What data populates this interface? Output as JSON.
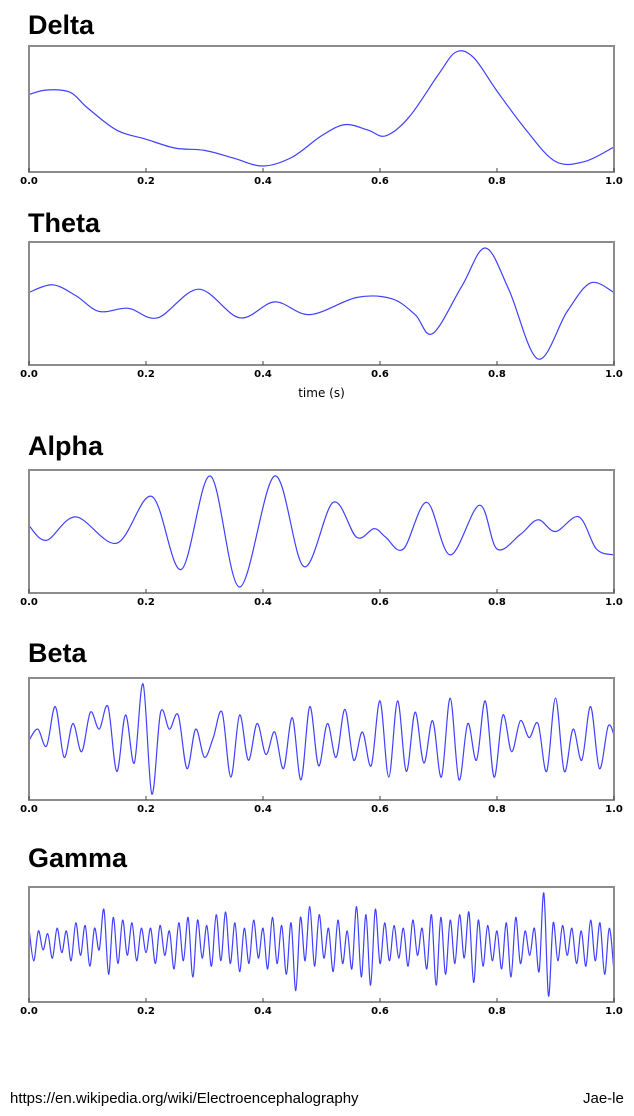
{
  "chart_data": [
    {
      "type": "line",
      "title": "Delta",
      "xlabel": "",
      "xlim": [
        0.0,
        1.0
      ],
      "xticks": [
        "0.0",
        "0.2",
        "0.4",
        "0.6",
        "0.8",
        "1.0"
      ],
      "grid": false,
      "series_color": "#4040ff",
      "series": [
        {
          "x": [
            0.0,
            0.03,
            0.07,
            0.1,
            0.15,
            0.2,
            0.25,
            0.3,
            0.35,
            0.4,
            0.45,
            0.5,
            0.54,
            0.58,
            0.61,
            0.65,
            0.7,
            0.73,
            0.76,
            0.8,
            0.85,
            0.9,
            0.95,
            1.0
          ],
          "y": [
            0.62,
            0.66,
            0.64,
            0.5,
            0.3,
            0.22,
            0.14,
            0.12,
            0.05,
            -0.02,
            0.06,
            0.25,
            0.35,
            0.3,
            0.25,
            0.42,
            0.8,
            1.0,
            0.95,
            0.65,
            0.3,
            0.02,
            0.02,
            0.15
          ]
        }
      ]
    },
    {
      "type": "line",
      "title": "Theta",
      "xlabel": "time (s)",
      "xlim": [
        0.0,
        1.0
      ],
      "xticks": [
        "0.0",
        "0.2",
        "0.4",
        "0.6",
        "0.8",
        "1.0"
      ],
      "grid": false,
      "series_color": "#4040ff",
      "series": [
        {
          "x": [
            0.0,
            0.04,
            0.08,
            0.12,
            0.17,
            0.22,
            0.29,
            0.36,
            0.42,
            0.48,
            0.56,
            0.62,
            0.66,
            0.69,
            0.74,
            0.78,
            0.82,
            0.87,
            0.92,
            0.96,
            1.0
          ],
          "y": [
            0.3,
            0.42,
            0.25,
            0.0,
            0.05,
            -0.1,
            0.35,
            -0.1,
            0.15,
            -0.05,
            0.22,
            0.2,
            -0.05,
            -0.35,
            0.4,
            1.0,
            0.35,
            -0.75,
            0.0,
            0.45,
            0.3
          ]
        }
      ]
    },
    {
      "type": "line",
      "title": "Alpha",
      "xlabel": "",
      "xlim": [
        0.0,
        1.0
      ],
      "xticks": [
        "0.0",
        "0.2",
        "0.4",
        "0.6",
        "0.8",
        "1.0"
      ],
      "grid": false,
      "series_color": "#4040ff",
      "series": [
        {
          "x": [
            0.0,
            0.03,
            0.08,
            0.15,
            0.21,
            0.26,
            0.31,
            0.36,
            0.42,
            0.47,
            0.52,
            0.56,
            0.59,
            0.61,
            0.64,
            0.68,
            0.72,
            0.77,
            0.8,
            0.84,
            0.87,
            0.9,
            0.94,
            0.97,
            1.0
          ],
          "y": [
            0.1,
            -0.15,
            0.25,
            -0.2,
            0.6,
            -0.65,
            0.95,
            -0.95,
            0.95,
            -0.6,
            0.5,
            -0.1,
            0.05,
            -0.1,
            -0.3,
            0.5,
            -0.4,
            0.45,
            -0.3,
            -0.05,
            0.2,
            0.0,
            0.25,
            -0.3,
            -0.4
          ]
        }
      ]
    },
    {
      "type": "line",
      "title": "Beta",
      "xlabel": "",
      "xlim": [
        0.0,
        1.0
      ],
      "xticks": [
        "0.0",
        "0.2",
        "0.4",
        "0.6",
        "0.8",
        "1.0"
      ],
      "grid": false,
      "series_color": "#4040ff",
      "series": [
        {
          "x": [
            0.0,
            0.015,
            0.03,
            0.045,
            0.06,
            0.075,
            0.09,
            0.105,
            0.12,
            0.135,
            0.15,
            0.165,
            0.18,
            0.195,
            0.21,
            0.225,
            0.24,
            0.255,
            0.27,
            0.285,
            0.3,
            0.315,
            0.33,
            0.345,
            0.36,
            0.375,
            0.39,
            0.405,
            0.42,
            0.435,
            0.45,
            0.465,
            0.48,
            0.495,
            0.51,
            0.525,
            0.54,
            0.555,
            0.57,
            0.585,
            0.6,
            0.615,
            0.63,
            0.645,
            0.66,
            0.675,
            0.69,
            0.705,
            0.72,
            0.735,
            0.75,
            0.765,
            0.78,
            0.795,
            0.81,
            0.825,
            0.84,
            0.855,
            0.87,
            0.885,
            0.9,
            0.915,
            0.93,
            0.945,
            0.96,
            0.975,
            0.99,
            1.0
          ],
          "y": [
            0.0,
            0.2,
            -0.1,
            0.6,
            -0.3,
            0.3,
            -0.2,
            0.5,
            0.2,
            0.6,
            -0.55,
            0.45,
            -0.4,
            1.0,
            -0.95,
            0.5,
            0.2,
            0.45,
            -0.5,
            0.2,
            -0.3,
            0.05,
            0.5,
            -0.65,
            0.45,
            -0.35,
            0.3,
            -0.25,
            0.15,
            -0.5,
            0.4,
            -0.7,
            0.6,
            -0.45,
            0.3,
            -0.3,
            0.55,
            -0.35,
            0.15,
            -0.45,
            0.7,
            -0.65,
            0.7,
            -0.55,
            0.5,
            -0.4,
            0.35,
            -0.65,
            0.75,
            -0.7,
            0.3,
            -0.35,
            0.7,
            -0.65,
            0.45,
            -0.2,
            0.35,
            0.05,
            0.3,
            -0.55,
            0.75,
            -0.55,
            0.2,
            -0.35,
            0.6,
            -0.5,
            0.25,
            0.1
          ]
        }
      ]
    },
    {
      "type": "line",
      "title": "Gamma",
      "xlabel": "",
      "xlim": [
        0.0,
        1.0
      ],
      "xticks": [
        "0.0",
        "0.2",
        "0.4",
        "0.6",
        "0.8",
        "1.0"
      ],
      "grid": false,
      "series_color": "#4040ff",
      "series": [
        {
          "x": [
            0.0,
            0.008,
            0.016,
            0.024,
            0.032,
            0.04,
            0.048,
            0.056,
            0.064,
            0.072,
            0.08,
            0.088,
            0.096,
            0.104,
            0.112,
            0.12,
            0.128,
            0.136,
            0.144,
            0.152,
            0.16,
            0.168,
            0.176,
            0.184,
            0.192,
            0.2,
            0.208,
            0.216,
            0.224,
            0.232,
            0.24,
            0.248,
            0.256,
            0.264,
            0.272,
            0.28,
            0.288,
            0.296,
            0.304,
            0.312,
            0.32,
            0.328,
            0.336,
            0.344,
            0.352,
            0.36,
            0.368,
            0.376,
            0.384,
            0.392,
            0.4,
            0.408,
            0.416,
            0.424,
            0.432,
            0.44,
            0.448,
            0.456,
            0.464,
            0.472,
            0.48,
            0.488,
            0.496,
            0.504,
            0.512,
            0.52,
            0.528,
            0.536,
            0.544,
            0.552,
            0.56,
            0.568,
            0.576,
            0.584,
            0.592,
            0.6,
            0.608,
            0.616,
            0.624,
            0.632,
            0.64,
            0.648,
            0.656,
            0.664,
            0.672,
            0.68,
            0.688,
            0.696,
            0.704,
            0.712,
            0.72,
            0.728,
            0.736,
            0.744,
            0.752,
            0.76,
            0.768,
            0.776,
            0.784,
            0.792,
            0.8,
            0.808,
            0.816,
            0.824,
            0.832,
            0.84,
            0.848,
            0.856,
            0.864,
            0.872,
            0.88,
            0.888,
            0.896,
            0.904,
            0.912,
            0.92,
            0.928,
            0.936,
            0.944,
            0.952,
            0.96,
            0.968,
            0.976,
            0.984,
            0.992,
            1.0
          ],
          "y": [
            0.3,
            -0.3,
            0.25,
            -0.1,
            0.2,
            -0.25,
            0.3,
            -0.15,
            0.25,
            -0.3,
            0.4,
            -0.2,
            0.35,
            -0.4,
            0.3,
            -0.1,
            0.65,
            -0.55,
            0.5,
            -0.35,
            0.45,
            -0.2,
            0.4,
            -0.3,
            0.3,
            -0.15,
            0.3,
            -0.35,
            0.35,
            -0.2,
            0.25,
            -0.45,
            0.4,
            -0.3,
            0.5,
            -0.6,
            0.45,
            -0.25,
            0.35,
            -0.4,
            0.55,
            -0.3,
            0.6,
            -0.35,
            0.4,
            -0.5,
            0.3,
            -0.35,
            0.45,
            -0.25,
            0.3,
            -0.45,
            0.5,
            -0.35,
            0.35,
            -0.55,
            0.4,
            -0.85,
            0.5,
            -0.3,
            0.7,
            -0.4,
            0.55,
            -0.25,
            0.3,
            -0.5,
            0.45,
            -0.35,
            0.25,
            -0.45,
            0.7,
            -0.6,
            0.55,
            -0.75,
            0.65,
            -0.35,
            0.4,
            -0.3,
            0.35,
            -0.25,
            0.3,
            -0.4,
            0.45,
            -0.2,
            0.3,
            -0.45,
            0.55,
            -0.75,
            0.5,
            -0.55,
            0.45,
            -0.35,
            0.55,
            -0.25,
            0.6,
            -0.7,
            0.45,
            -0.4,
            0.35,
            -0.3,
            0.25,
            -0.45,
            0.4,
            -0.6,
            0.5,
            -0.35,
            0.25,
            -0.2,
            0.3,
            -0.5,
            0.95,
            -0.95,
            0.4,
            -0.3,
            0.35,
            -0.2,
            0.3,
            -0.35,
            0.25,
            -0.4,
            0.45,
            -0.3,
            0.4,
            -0.55,
            0.3,
            -0.5
          ]
        }
      ]
    }
  ],
  "footer": {
    "source_url": "https://en.wikipedia.org/wiki/Electroencephalography",
    "author": "Jae-le"
  }
}
